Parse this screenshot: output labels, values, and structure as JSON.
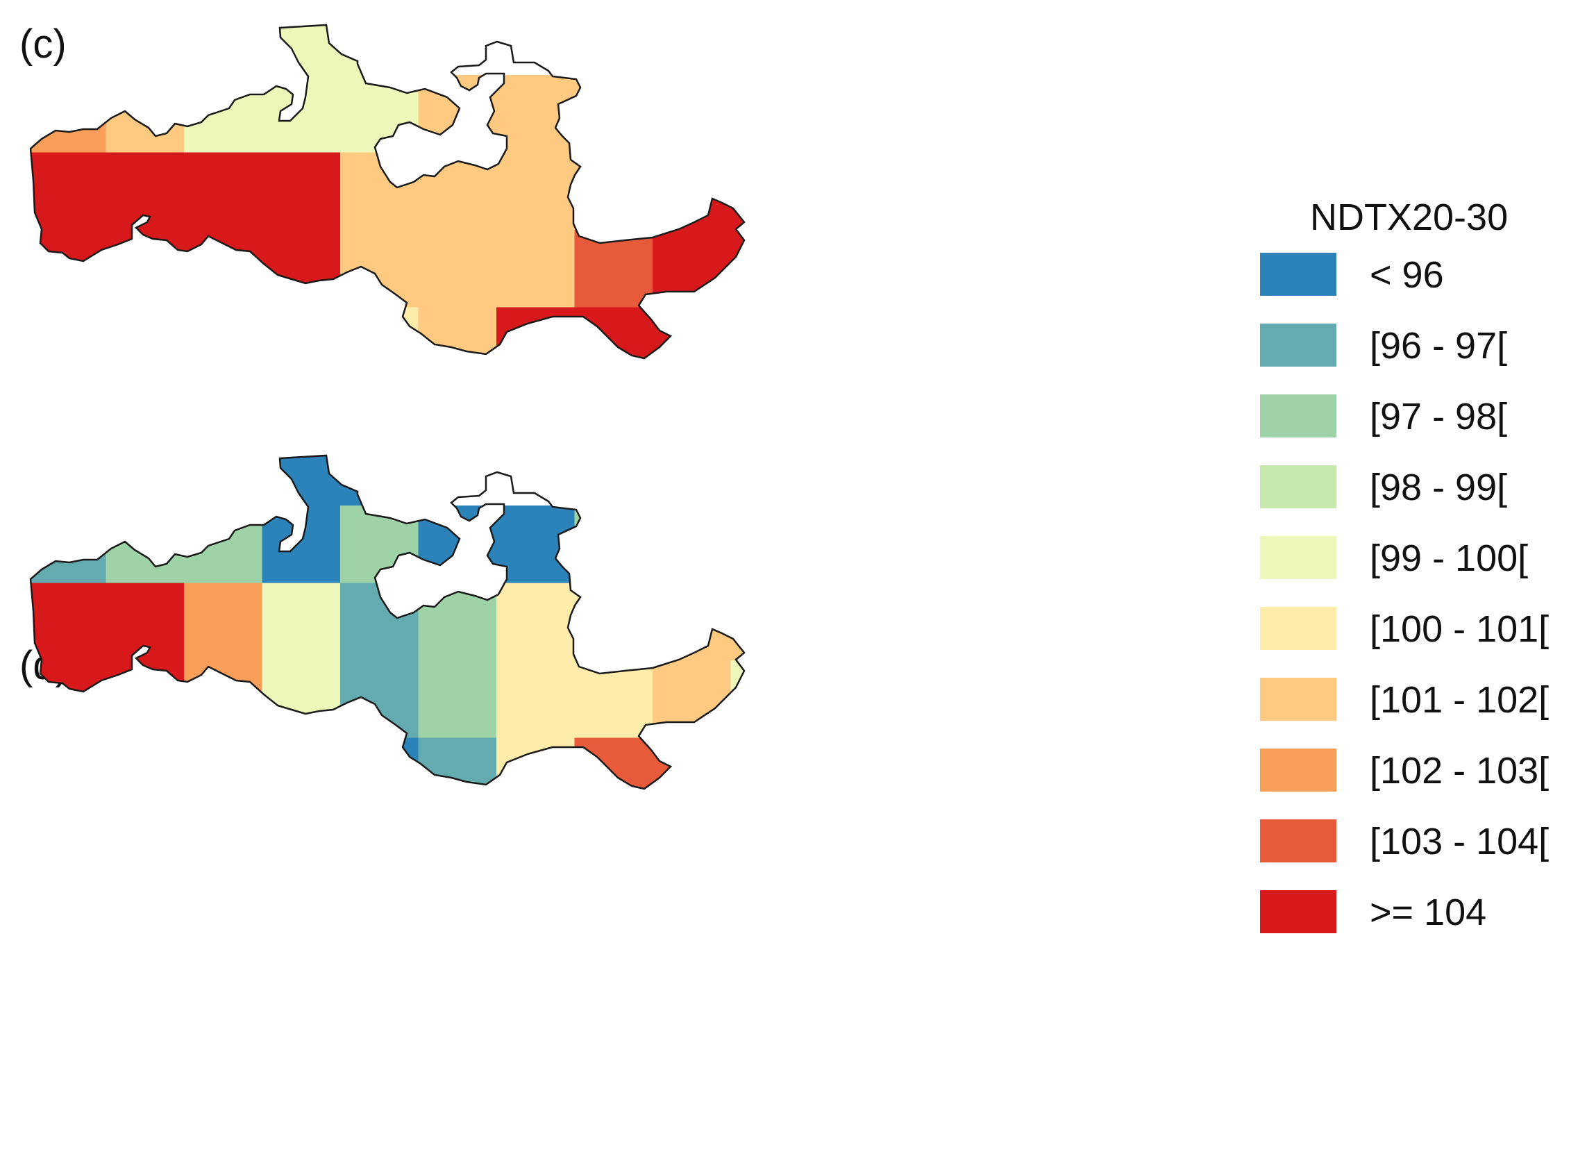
{
  "panels": [
    {
      "label": "(c)",
      "grid": [
        [
          null,
          null,
          null,
          4,
          4,
          null,
          null,
          8,
          5,
          null
        ],
        [
          7,
          6,
          4,
          4,
          4,
          6,
          6,
          6,
          9,
          9
        ],
        [
          9,
          9,
          9,
          9,
          6,
          6,
          6,
          6,
          9,
          9
        ],
        [
          9,
          9,
          9,
          9,
          6,
          6,
          6,
          8,
          9,
          9
        ],
        [
          7,
          8,
          8,
          7,
          5,
          6,
          9,
          9,
          9,
          9
        ],
        [
          null,
          null,
          null,
          null,
          5,
          5,
          8,
          8,
          8,
          null
        ]
      ]
    },
    {
      "label": "(d)",
      "grid": [
        [
          null,
          null,
          null,
          0,
          0,
          null,
          null,
          4,
          2,
          null
        ],
        [
          1,
          2,
          2,
          0,
          2,
          0,
          0,
          2,
          7,
          7
        ],
        [
          9,
          9,
          7,
          4,
          1,
          2,
          5,
          5,
          6,
          6
        ],
        [
          9,
          9,
          7,
          4,
          1,
          2,
          5,
          5,
          6,
          4
        ],
        [
          3,
          3,
          1,
          1,
          0,
          1,
          5,
          8,
          8,
          6
        ],
        [
          null,
          null,
          null,
          null,
          0,
          6,
          6,
          6,
          5,
          null
        ]
      ]
    }
  ],
  "legend": {
    "title": "NDTX20-30",
    "items": [
      {
        "label": "< 96",
        "color": "#2b83ba"
      },
      {
        "label": "[96 - 97[",
        "color": "#64abb0"
      },
      {
        "label": "[97 - 98[",
        "color": "#9dd3a6"
      },
      {
        "label": "[98 - 99[",
        "color": "#c7e9ad"
      },
      {
        "label": "[99 - 100[",
        "color": "#ecf7b9"
      },
      {
        "label": "[100 - 101[",
        "color": "#feecab"
      },
      {
        "label": "[101 - 102[",
        "color": "#fec980"
      },
      {
        "label": "[102 - 103[",
        "color": "#f99e59"
      },
      {
        "label": "[103 - 104[",
        "color": "#e85b3a"
      },
      {
        "label": ">= 104",
        "color": "#d7191c"
      }
    ]
  }
}
